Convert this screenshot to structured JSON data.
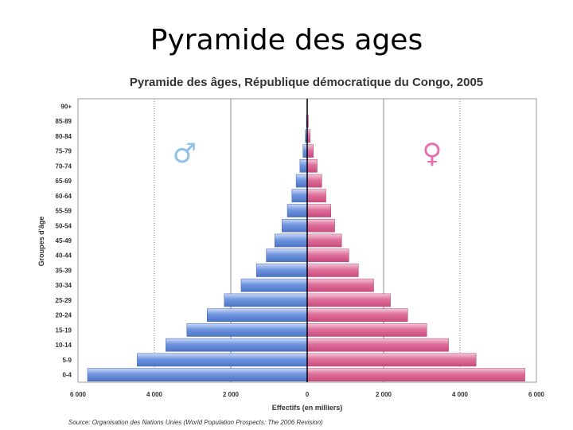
{
  "slide": {
    "title": "Pyramide des ages"
  },
  "chart_data": {
    "type": "bar",
    "orientation": "horizontal-pyramid",
    "title": "Pyramide des âges, République démocratique du Congo, 2005",
    "xlabel": "Effectifs (en milliers)",
    "ylabel": "Groupes d'âge",
    "xlim": [
      -6000,
      6000
    ],
    "x_tick_labels": [
      "6 000",
      "4 000",
      "2 000",
      "0",
      "2 000",
      "4 000",
      "6 000"
    ],
    "x_tick_values": [
      -6000,
      -4000,
      -2000,
      0,
      2000,
      4000,
      6000
    ],
    "categories": [
      "0-4",
      "5-9",
      "10-14",
      "15-19",
      "20-24",
      "25-29",
      "30-34",
      "35-39",
      "40-44",
      "45-49",
      "50-54",
      "55-59",
      "60-64",
      "65-69",
      "70-74",
      "75-79",
      "80-84",
      "85-89",
      "90+"
    ],
    "series": [
      {
        "symbol": "♂",
        "side": "left",
        "color": "#5b84d6",
        "values": [
          5750,
          4450,
          3700,
          3150,
          2620,
          2170,
          1730,
          1330,
          1070,
          850,
          660,
          520,
          400,
          290,
          190,
          110,
          50,
          20,
          5
        ]
      },
      {
        "symbol": "♀",
        "side": "right",
        "color": "#d9608f",
        "values": [
          5700,
          4420,
          3700,
          3130,
          2630,
          2180,
          1740,
          1340,
          1090,
          900,
          720,
          620,
          490,
          380,
          260,
          160,
          80,
          30,
          8
        ]
      }
    ],
    "male_symbol_color": "#8ec0ea",
    "female_symbol_color": "#e56fb0",
    "grid": true,
    "source": "Source: Organisation des Nations Unies (World Population Prospects: The 2006 Revision)"
  }
}
